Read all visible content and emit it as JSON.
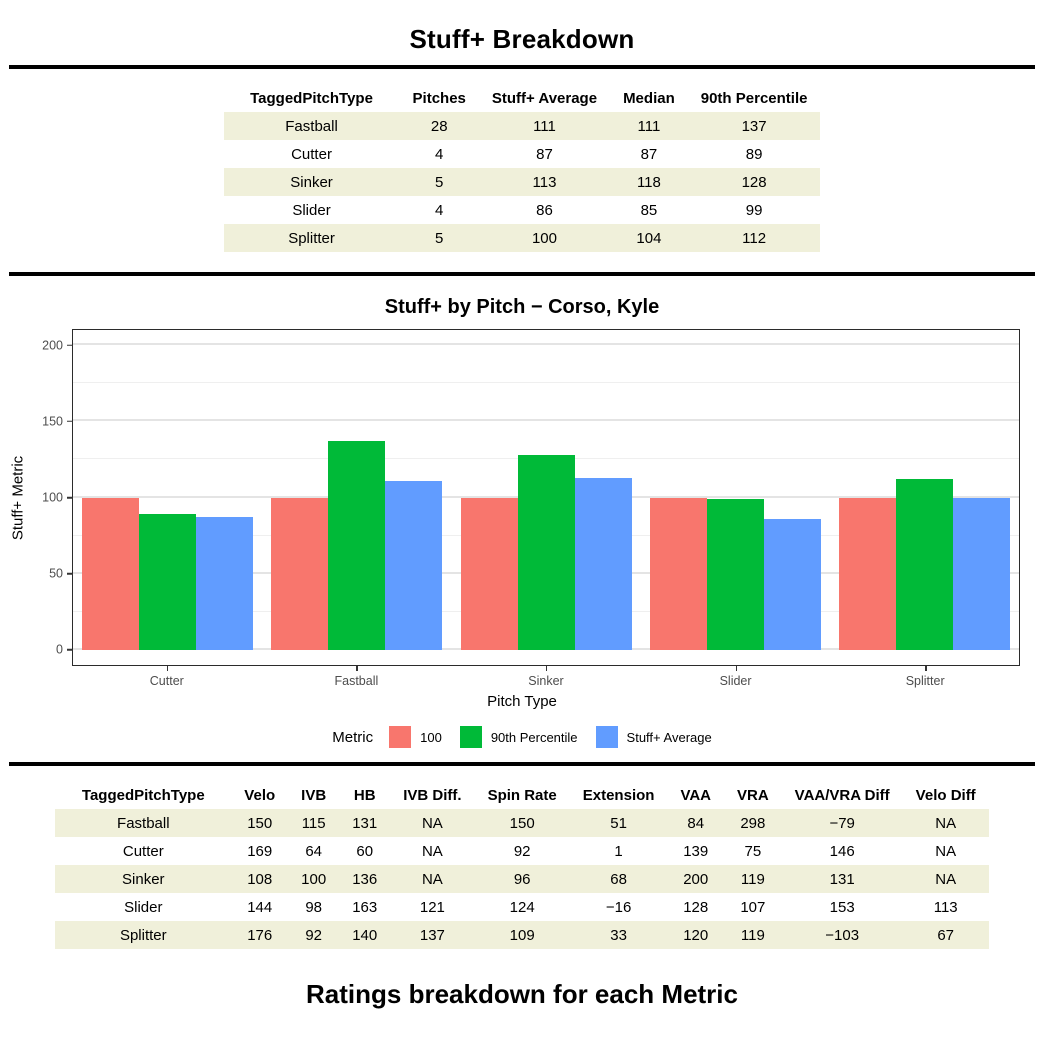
{
  "page": {
    "title": "Stuff+ Breakdown",
    "footer_title": "Ratings breakdown for each Metric"
  },
  "summary_table": {
    "columns": [
      "TaggedPitchType",
      "Pitches",
      "Stuff+ Average",
      "Median",
      "90th Percentile"
    ],
    "rows": [
      [
        "Fastball",
        "28",
        "111",
        "111",
        "137"
      ],
      [
        "Cutter",
        "4",
        "87",
        "87",
        "89"
      ],
      [
        "Sinker",
        "5",
        "113",
        "118",
        "128"
      ],
      [
        "Slider",
        "4",
        "86",
        "85",
        "99"
      ],
      [
        "Splitter",
        "5",
        "100",
        "104",
        "112"
      ]
    ],
    "stripe_color": "#F0F0DA"
  },
  "chart_data": {
    "type": "bar",
    "title": "Stuff+ by Pitch − Corso, Kyle",
    "categories": [
      "Cutter",
      "Fastball",
      "Sinker",
      "Slider",
      "Splitter"
    ],
    "series": [
      {
        "name": "100",
        "color": "#F8766D",
        "values": [
          100,
          100,
          100,
          100,
          100
        ]
      },
      {
        "name": "90th Percentile",
        "color": "#00BA38",
        "values": [
          89,
          137,
          128,
          99,
          112
        ]
      },
      {
        "name": "Stuff+ Average",
        "color": "#619CFF",
        "values": [
          87,
          111,
          113,
          86,
          100
        ]
      }
    ],
    "xlabel": "Pitch Type",
    "ylabel": "Stuff+ Metric",
    "ylim": [
      0,
      200
    ],
    "yticks": [
      0,
      50,
      100,
      150,
      200
    ],
    "minor_ticks": [
      25,
      75,
      125,
      175
    ],
    "axis_range": [
      -10,
      210
    ],
    "legend_title": "Metric",
    "legend_position": "bottom",
    "grid": true,
    "panel_border": "#2b2b2b",
    "gridline_color": "#E4E4E4"
  },
  "metrics_table": {
    "columns": [
      "TaggedPitchType",
      "Velo",
      "IVB",
      "HB",
      "IVB Diff.",
      "Spin Rate",
      "Extension",
      "VAA",
      "VRA",
      "VAA/VRA Diff",
      "Velo Diff"
    ],
    "rows": [
      [
        "Fastball",
        "150",
        "115",
        "131",
        "NA",
        "150",
        "51",
        "84",
        "298",
        "−79",
        "NA"
      ],
      [
        "Cutter",
        "169",
        "64",
        "60",
        "NA",
        "92",
        "1",
        "139",
        "75",
        "146",
        "NA"
      ],
      [
        "Sinker",
        "108",
        "100",
        "136",
        "NA",
        "96",
        "68",
        "200",
        "119",
        "131",
        "NA"
      ],
      [
        "Slider",
        "144",
        "98",
        "163",
        "121",
        "124",
        "−16",
        "128",
        "107",
        "153",
        "113"
      ],
      [
        "Splitter",
        "176",
        "92",
        "140",
        "137",
        "109",
        "33",
        "120",
        "119",
        "−103",
        "67"
      ]
    ],
    "stripe_color": "#F0F0DA"
  }
}
